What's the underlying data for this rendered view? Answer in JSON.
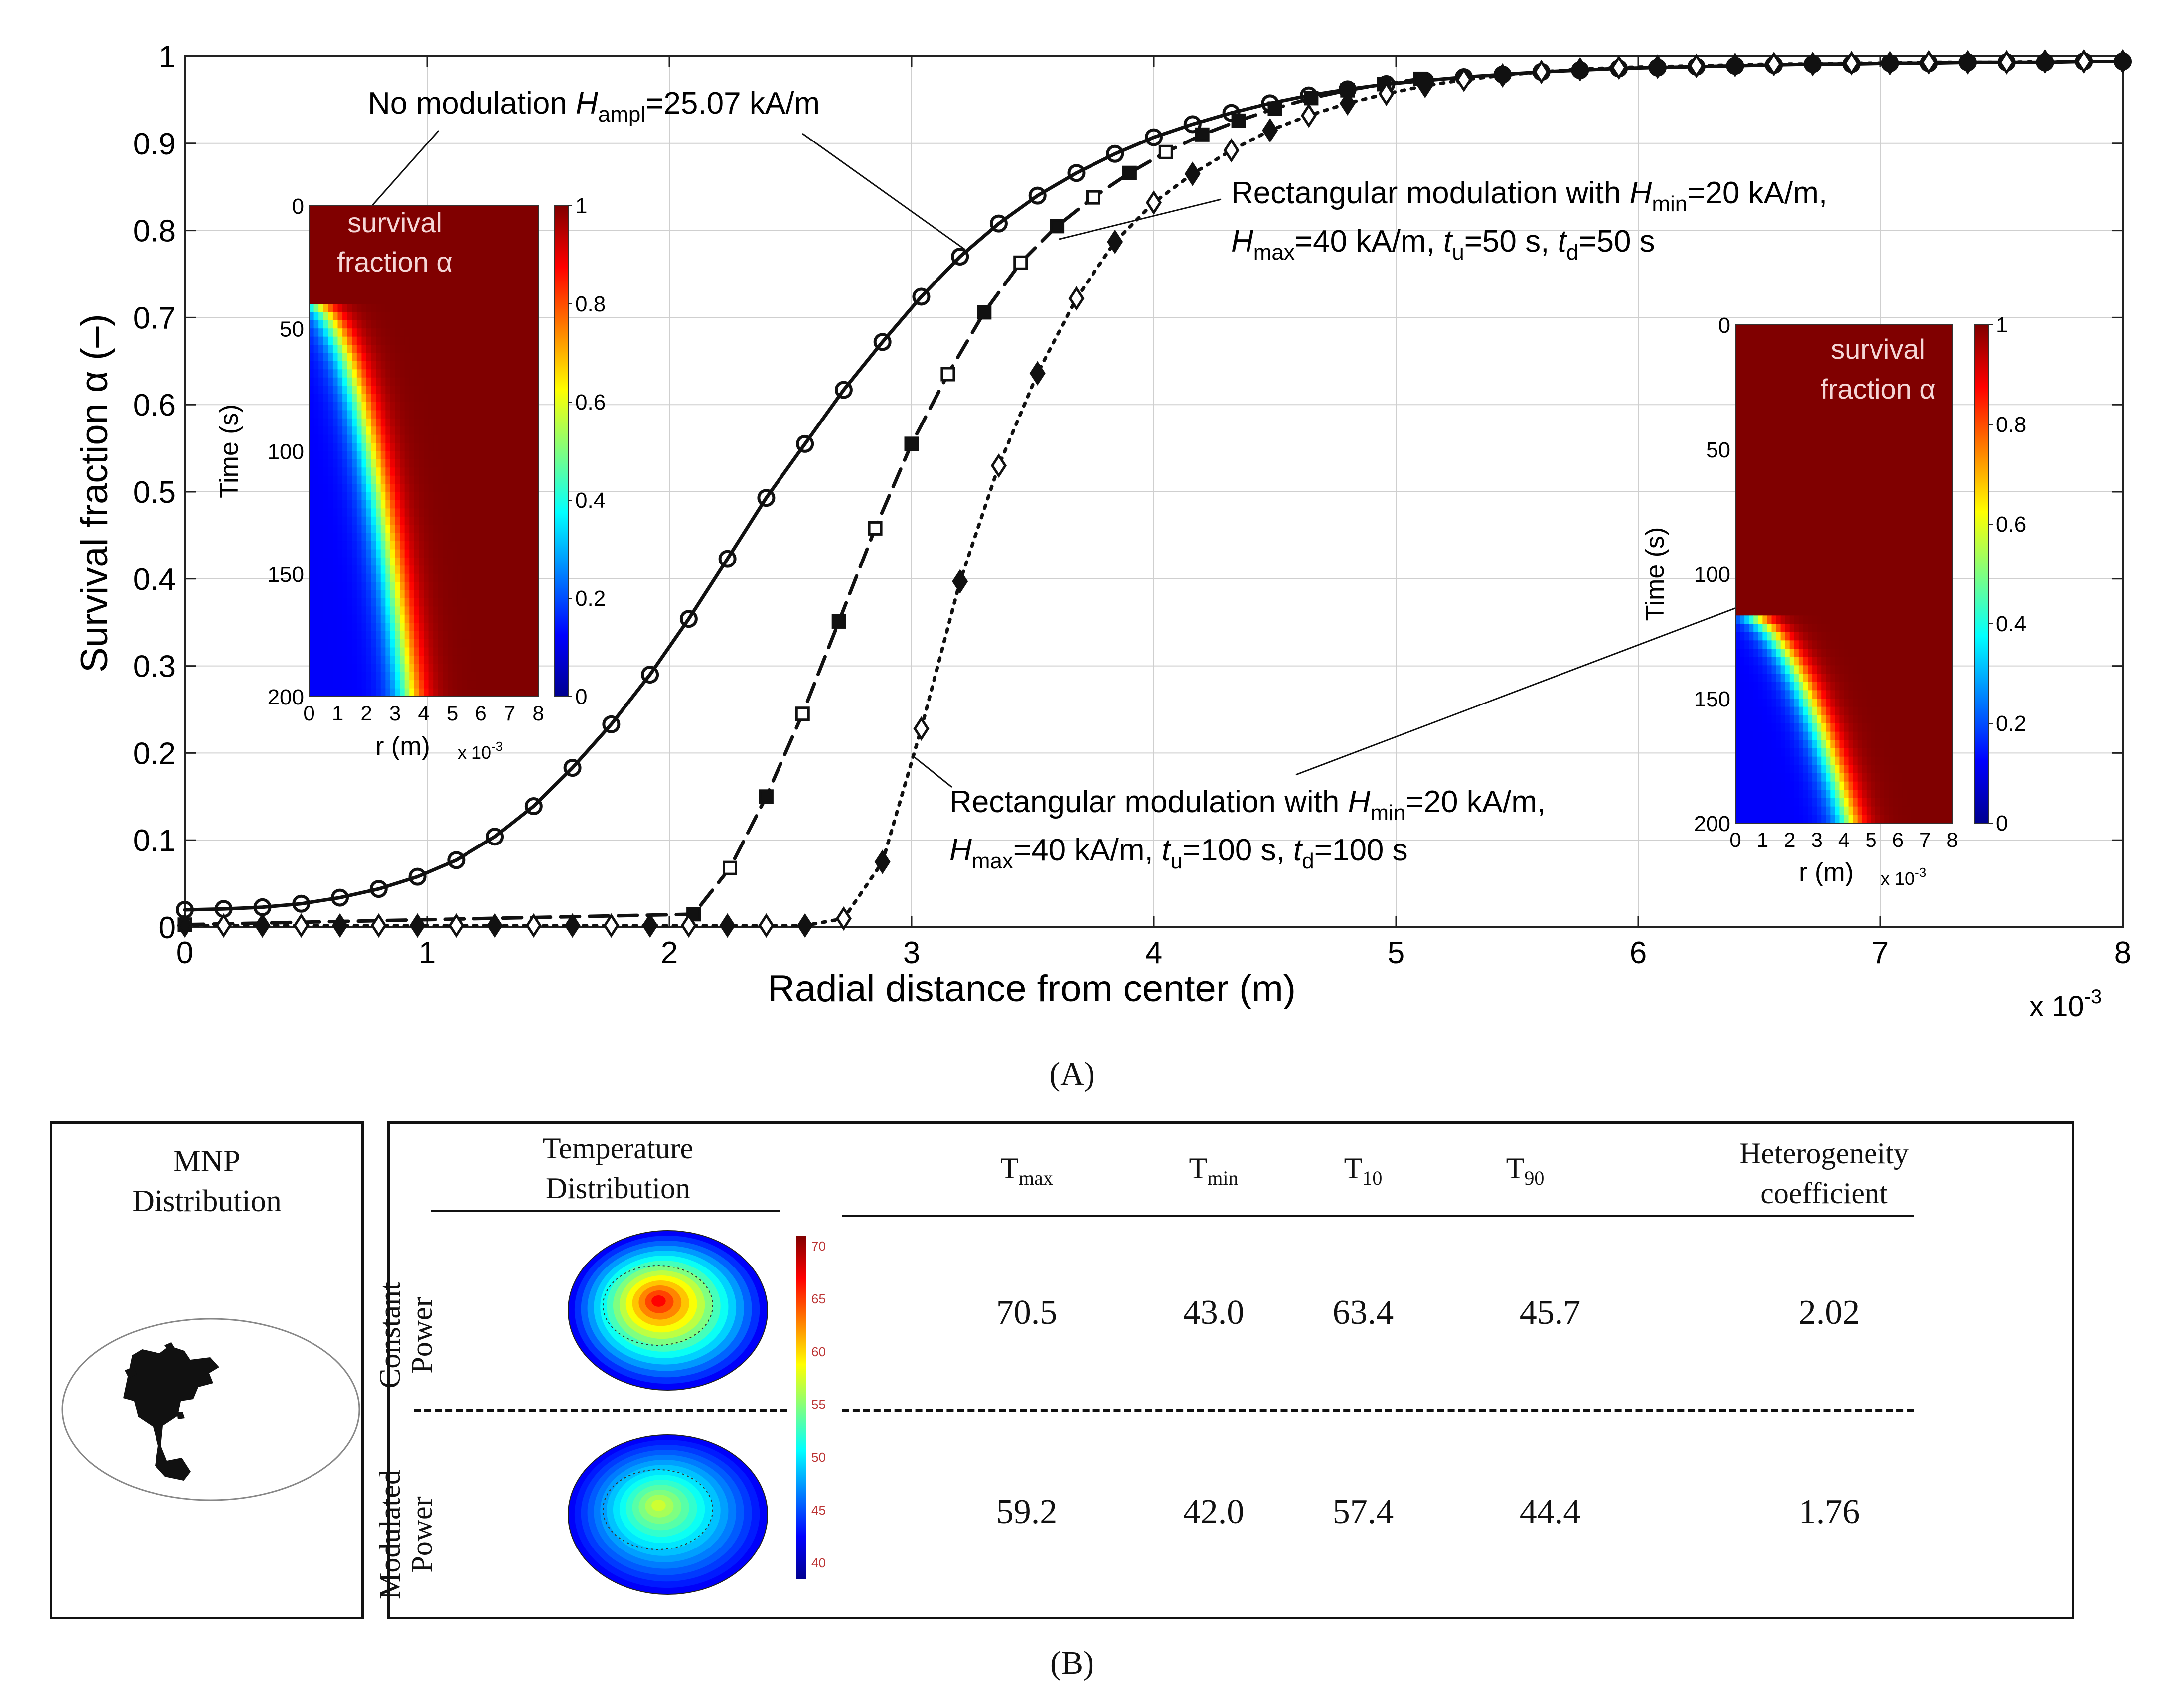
{
  "chart_data": {
    "type": "line",
    "title": "",
    "xlabel": "Radial distance from center (m)",
    "ylabel": "Survival fraction α (–)",
    "x_exponent": "x 10",
    "x_exponent_power": "-3",
    "xlim": [
      0,
      8
    ],
    "ylim": [
      0,
      1
    ],
    "x_ticks": [
      "0",
      "1",
      "2",
      "3",
      "4",
      "5",
      "6",
      "7",
      "8"
    ],
    "y_ticks": [
      "0",
      "0.1",
      "0.2",
      "0.3",
      "0.4",
      "0.5",
      "0.6",
      "0.7",
      "0.8",
      "0.9",
      "1"
    ],
    "grid": true,
    "series": [
      {
        "name": "No modulation",
        "style": "solid",
        "marker": "open-circle",
        "x": [
          0,
          0.16,
          0.32,
          0.48,
          0.64,
          0.8,
          0.96,
          1.12,
          1.28,
          1.44,
          1.6,
          1.76,
          1.92,
          2.08,
          2.24,
          2.4,
          2.56,
          2.72,
          2.88,
          3.04,
          3.2,
          3.36,
          3.52,
          3.68,
          3.84,
          4.0,
          4.16,
          4.32,
          4.48,
          4.64,
          4.8,
          4.96,
          5.12,
          5.28,
          5.44,
          5.6,
          5.76,
          5.92,
          6.08,
          6.24,
          6.4,
          6.56,
          6.72,
          6.88,
          7.04,
          7.2,
          7.36,
          7.52,
          7.68,
          7.84,
          8.0
        ],
        "y": [
          0.02,
          0.021,
          0.023,
          0.027,
          0.034,
          0.044,
          0.058,
          0.077,
          0.104,
          0.139,
          0.183,
          0.233,
          0.29,
          0.354,
          0.423,
          0.493,
          0.555,
          0.617,
          0.672,
          0.724,
          0.77,
          0.808,
          0.84,
          0.866,
          0.888,
          0.907,
          0.922,
          0.935,
          0.946,
          0.955,
          0.962,
          0.968,
          0.972,
          0.976,
          0.979,
          0.982,
          0.984,
          0.986,
          0.987,
          0.988,
          0.989,
          0.99,
          0.991,
          0.991,
          0.992,
          0.992,
          0.993,
          0.993,
          0.993,
          0.994,
          0.994
        ]
      },
      {
        "name": "Rectangular modulation t_u=50 s",
        "style": "dashed",
        "marker": "square",
        "x": [
          0,
          2.1,
          2.25,
          2.4,
          2.55,
          2.7,
          2.85,
          3.0,
          3.15,
          3.3,
          3.45,
          3.6,
          3.75,
          3.9,
          4.05,
          4.2,
          4.35,
          4.5,
          4.65,
          4.8,
          4.95,
          5.1
        ],
        "y": [
          0.003,
          0.015,
          0.068,
          0.15,
          0.245,
          0.351,
          0.458,
          0.555,
          0.635,
          0.706,
          0.763,
          0.805,
          0.838,
          0.866,
          0.89,
          0.91,
          0.926,
          0.94,
          0.952,
          0.961,
          0.968,
          0.974
        ]
      },
      {
        "name": "Rectangular modulation t_u=100 s",
        "style": "dotted",
        "marker": "diamond",
        "x": [
          0,
          0.16,
          0.32,
          0.48,
          0.64,
          0.8,
          0.96,
          1.12,
          1.28,
          1.44,
          1.6,
          1.76,
          1.92,
          2.08,
          2.24,
          2.4,
          2.56,
          2.72,
          2.88,
          3.04,
          3.2,
          3.36,
          3.52,
          3.68,
          3.84,
          4.0,
          4.16,
          4.32,
          4.48,
          4.64,
          4.8,
          4.96,
          5.12,
          5.28,
          5.44,
          5.6,
          5.76,
          5.92,
          6.08,
          6.24,
          6.4,
          6.56,
          6.72,
          6.88,
          7.04,
          7.2,
          7.36,
          7.52,
          7.68,
          7.84,
          8.0
        ],
        "y": [
          0.002,
          0.002,
          0.002,
          0.002,
          0.002,
          0.002,
          0.002,
          0.002,
          0.002,
          0.002,
          0.002,
          0.002,
          0.002,
          0.002,
          0.002,
          0.002,
          0.002,
          0.01,
          0.075,
          0.228,
          0.397,
          0.53,
          0.636,
          0.722,
          0.787,
          0.832,
          0.865,
          0.892,
          0.915,
          0.932,
          0.946,
          0.957,
          0.966,
          0.973,
          0.978,
          0.982,
          0.985,
          0.987,
          0.988,
          0.989,
          0.99,
          0.991,
          0.991,
          0.992,
          0.992,
          0.993,
          0.993,
          0.993,
          0.994,
          0.994,
          0.994
        ]
      }
    ],
    "annotations": {
      "no_mod": {
        "pre": "No modulation ",
        "H": "H",
        "sub": "ampl",
        "post": "=25.07 kA/m"
      },
      "rect50": {
        "line1_pre": "Rectangular modulation with ",
        "line1_H": "H",
        "line1_sub": "min",
        "line1_post": "=20 kA/m,",
        "line2_H": "H",
        "line2_sub": "max",
        "line2_a": "=40 kA/m, ",
        "line2_t1": "t",
        "line2_t1sub": "u",
        "line2_b": "=50 s, ",
        "line2_t2": "t",
        "line2_t2sub": "d",
        "line2_c": "=50 s"
      },
      "rect100": {
        "line1_pre": "Rectangular modulation with ",
        "line1_H": "H",
        "line1_sub": "min",
        "line1_post": "=20 kA/m,",
        "line2_H": "H",
        "line2_sub": "max",
        "line2_a": "=40 kA/m, ",
        "line2_t1": "t",
        "line2_t1sub": "u",
        "line2_b": "=100 s, ",
        "line2_t2": "t",
        "line2_t2sub": "d",
        "line2_c": "=100 s"
      }
    },
    "insets": [
      {
        "title1": "survival",
        "title2": "fraction α",
        "ylabel": "Time (s)",
        "xlabel": "r (m)",
        "x_exponent": "x 10",
        "x_exponent_power": "-3",
        "y_ticks": [
          "0",
          "50",
          "100",
          "150",
          "200"
        ],
        "x_ticks": [
          "0",
          "1",
          "2",
          "3",
          "4",
          "5",
          "6",
          "7",
          "8"
        ],
        "cbar_ticks": [
          "0",
          "0.2",
          "0.4",
          "0.6",
          "0.8",
          "1"
        ],
        "front_r_at_tmax": 3.5,
        "front_onset_t": 40
      },
      {
        "title1": "survival",
        "title2": "fraction α",
        "ylabel": "Time (s)",
        "xlabel": "r (m)",
        "x_exponent": "x 10",
        "x_exponent_power": "-3",
        "y_ticks": [
          "0",
          "50",
          "100",
          "150",
          "200"
        ],
        "x_ticks": [
          "0",
          "1",
          "2",
          "3",
          "4",
          "5",
          "6",
          "7",
          "8"
        ],
        "cbar_ticks": [
          "0",
          "0.2",
          "0.4",
          "0.6",
          "0.8",
          "1"
        ],
        "front_r_at_tmax": 4.2,
        "front_onset_t": 115
      }
    ]
  },
  "panel_labels": {
    "a": "(A)",
    "b": "(B)"
  },
  "panel_b": {
    "mnp_title_1": "MNP",
    "mnp_title_2": "Distribution",
    "temp_header_1": "Temperature",
    "temp_header_2": "Distribution",
    "columns": [
      {
        "main": "T",
        "sub": "max"
      },
      {
        "main": "T",
        "sub": "min"
      },
      {
        "main": "T",
        "sub": "10"
      },
      {
        "main": "T",
        "sub": "90"
      }
    ],
    "het_header_1": "Heterogeneity",
    "het_header_2": "coefficient",
    "rows": [
      {
        "label1": "Constant",
        "label2": "Power",
        "values": [
          "70.5",
          "43.0",
          "63.4",
          "45.7",
          "2.02"
        ],
        "peak": 70
      },
      {
        "label1": "Modulated",
        "label2": "Power",
        "values": [
          "59.2",
          "42.0",
          "57.4",
          "44.4",
          "1.76"
        ],
        "peak": 59
      }
    ],
    "colorbar_ticks": [
      "70",
      "65",
      "60",
      "55",
      "50",
      "45",
      "40"
    ]
  }
}
